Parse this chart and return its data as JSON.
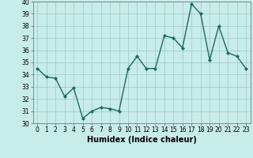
{
  "x": [
    0,
    1,
    2,
    3,
    4,
    5,
    6,
    7,
    8,
    9,
    10,
    11,
    12,
    13,
    14,
    15,
    16,
    17,
    18,
    19,
    20,
    21,
    22,
    23
  ],
  "y": [
    34.5,
    33.8,
    33.7,
    32.2,
    32.9,
    30.4,
    31.0,
    31.3,
    31.2,
    31.0,
    34.5,
    35.5,
    34.5,
    34.5,
    37.2,
    37.0,
    36.2,
    39.8,
    39.0,
    35.2,
    38.0,
    35.8,
    35.5,
    34.5
  ],
  "line_color": "#1a6b5a",
  "marker": "D",
  "marker_size": 2.0,
  "bg_color": "#c8ece8",
  "grid_color": "#9dc8c3",
  "xlabel": "Humidex (Indice chaleur)",
  "ylim": [
    30,
    40
  ],
  "xlim_min": -0.5,
  "xlim_max": 23.5,
  "yticks": [
    30,
    31,
    32,
    33,
    34,
    35,
    36,
    37,
    38,
    39,
    40
  ],
  "xticks": [
    0,
    1,
    2,
    3,
    4,
    5,
    6,
    7,
    8,
    9,
    10,
    11,
    12,
    13,
    14,
    15,
    16,
    17,
    18,
    19,
    20,
    21,
    22,
    23
  ],
  "tick_fontsize": 5.5,
  "xlabel_fontsize": 7.0,
  "linewidth": 1.0
}
